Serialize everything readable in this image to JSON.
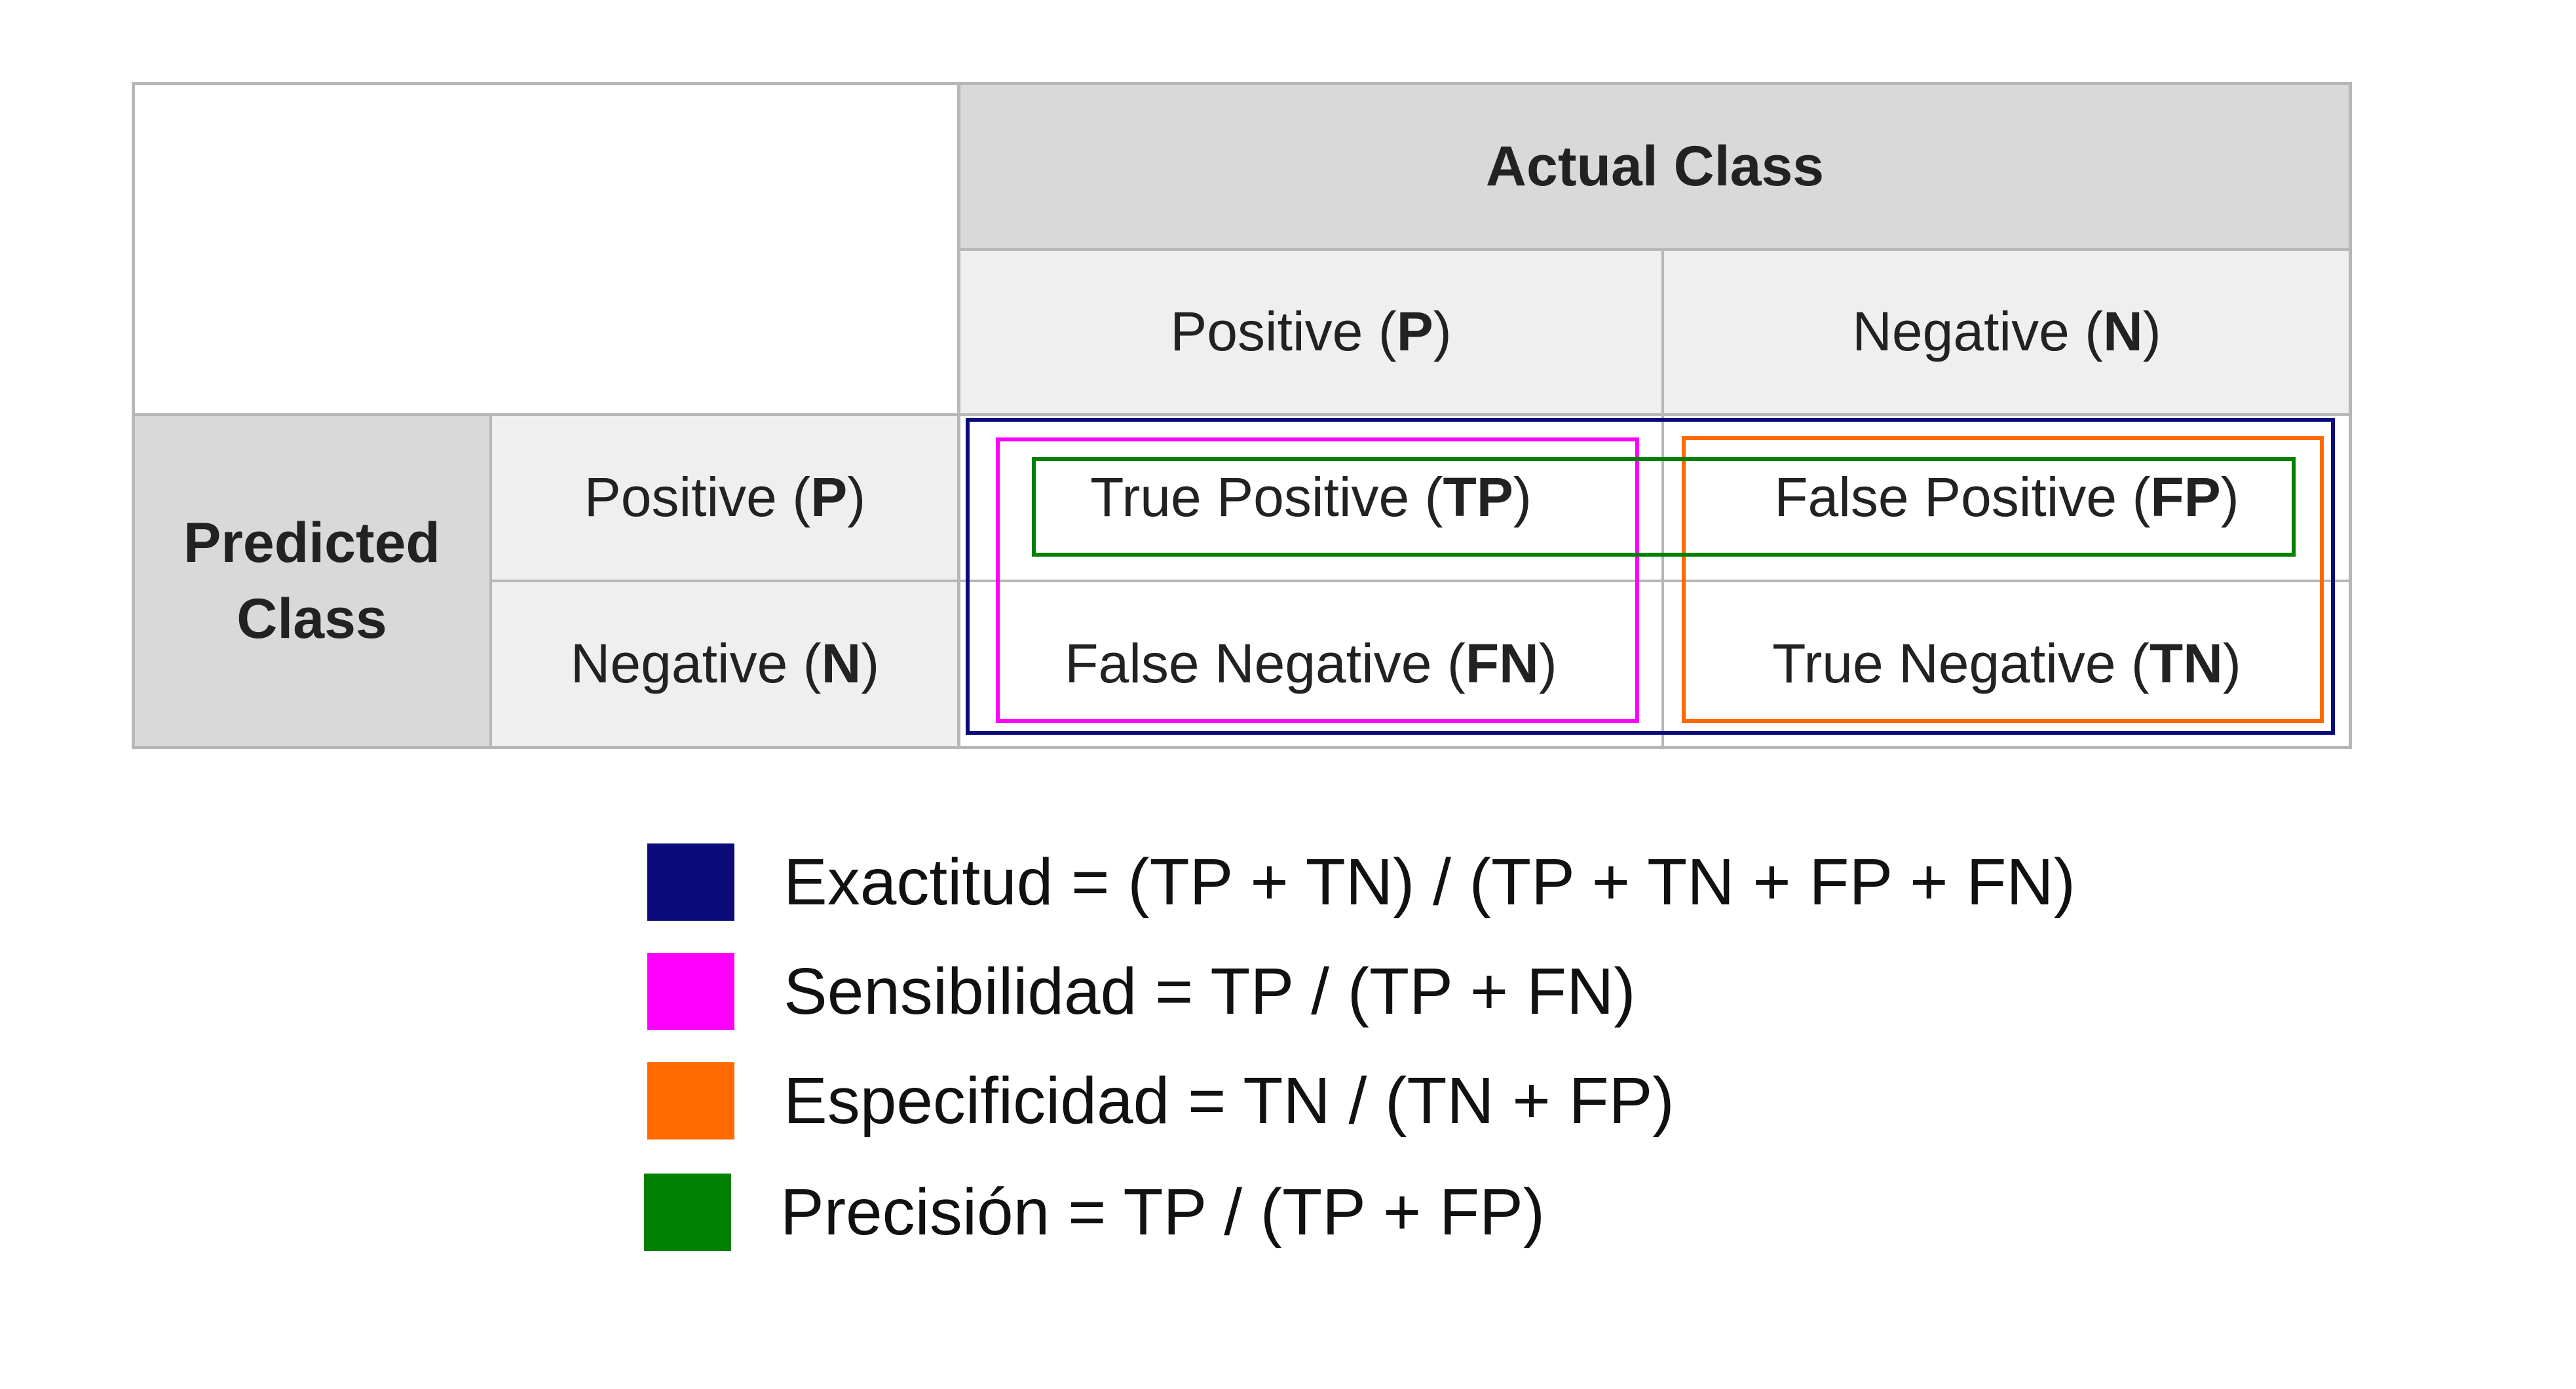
{
  "matrix": {
    "actual_header": "Actual Class",
    "predicted_header_line1": "Predicted",
    "predicted_header_line2": "Class",
    "actual_positive": {
      "label": "Positive (",
      "abbr": "P",
      "close": ")"
    },
    "actual_negative": {
      "label": "Negative (",
      "abbr": "N",
      "close": ")"
    },
    "predicted_positive": {
      "label": "Positive (",
      "abbr": "P",
      "close": ")"
    },
    "predicted_negative": {
      "label": "Negative (",
      "abbr": "N",
      "close": ")"
    },
    "tp": {
      "label": "True Positive (",
      "abbr": "TP",
      "close": ")"
    },
    "fp": {
      "label": "False Positive (",
      "abbr": "FP",
      "close": ")"
    },
    "fn": {
      "label": "False Negative (",
      "abbr": "FN",
      "close": ")"
    },
    "tn": {
      "label": "True Negative (",
      "abbr": "TN",
      "close": ")"
    }
  },
  "legend": [
    {
      "text": "Exactitud = (TP + TN) / (TP + TN + FP + FN)",
      "color": "#0a0a7a"
    },
    {
      "text": "Sensibilidad = TP / (TP + FN)",
      "color": "#ff00ff"
    },
    {
      "text": "Especificidad = TN / (TN + FP)",
      "color": "#ff6a00"
    },
    {
      "text": "Precisión = TP  / (TP + FP)",
      "color": "#008000"
    }
  ],
  "highlight_colors": {
    "exactitud": "#0a0a7a",
    "sensibilidad": "#ff00ff",
    "especificidad": "#ff6a00",
    "precision": "#008000"
  }
}
